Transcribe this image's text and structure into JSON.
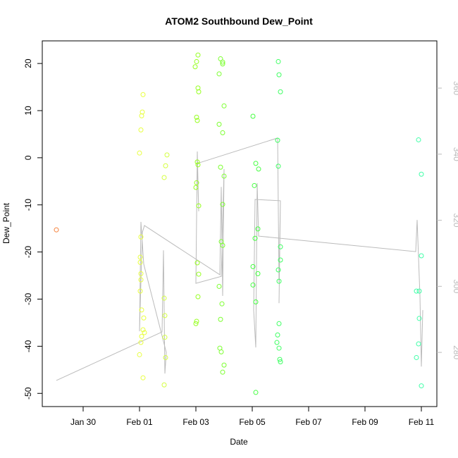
{
  "chart_data": {
    "type": "scatter",
    "title": "ATOM2 Southbound Dew_Point",
    "xlabel": "Date",
    "ylabel": "Dew_Point",
    "xlim": [
      28.55,
      42.55
    ],
    "xticks": [
      {
        "value": 30,
        "label": "Jan 30"
      },
      {
        "value": 32,
        "label": "Feb 01"
      },
      {
        "value": 34,
        "label": "Feb 03"
      },
      {
        "value": 36,
        "label": "Feb 05"
      },
      {
        "value": 38,
        "label": "Feb 07"
      },
      {
        "value": 40,
        "label": "Feb 09"
      },
      {
        "value": 42,
        "label": "Feb 11"
      }
    ],
    "ylim": [
      -52.8,
      24.8
    ],
    "yticks": [
      -50,
      -40,
      -30,
      -20,
      -10,
      0,
      10,
      20
    ],
    "y2lim": [
      263.6,
      374.3
    ],
    "y2ticks": [
      280,
      300,
      320,
      340,
      360
    ],
    "series": [
      {
        "type": "scatter",
        "color": "#f5823c",
        "x": [
          29.05
        ],
        "values": [
          -15.3
        ]
      },
      {
        "type": "scatter",
        "color": "#e8ff40",
        "x": [
          32.125,
          32.1,
          32.075,
          32.05,
          32.0,
          32.05,
          32.025,
          32.025,
          32.05,
          32.05,
          32.025,
          32.075,
          32.15,
          32.125,
          32.175,
          32.075,
          32.05,
          32.0,
          32.125
        ],
        "values": [
          13.4,
          9.7,
          8.9,
          5.9,
          1.0,
          -16.8,
          -21.1,
          -22.2,
          -24.6,
          -25.9,
          -28.3,
          -32.3,
          -34.0,
          -36.5,
          -37.1,
          -37.9,
          -39.2,
          -41.8,
          -46.7
        ]
      },
      {
        "type": "scatter",
        "color": "#d4ff40",
        "x": [
          32.975,
          32.925,
          32.875,
          32.875,
          32.9,
          32.9,
          32.925,
          32.875
        ],
        "values": [
          0.6,
          -1.7,
          -4.2,
          -29.8,
          -33.5,
          -38.1,
          -42.4,
          -48.2
        ]
      },
      {
        "type": "scatter",
        "color": "#96ff20",
        "x": [
          34.075,
          34.025,
          33.975,
          34.075,
          34.1,
          34.025,
          34.05,
          34.05,
          34.075,
          34.025,
          34.0,
          34.1,
          34.05,
          34.1,
          34.075,
          34.025,
          34.0
        ],
        "values": [
          21.8,
          20.4,
          19.3,
          14.8,
          14.0,
          8.6,
          7.9,
          -0.9,
          -1.5,
          -5.3,
          -6.3,
          -10.2,
          -22.3,
          -24.7,
          -29.5,
          -34.7,
          -35.2
        ]
      },
      {
        "type": "scatter",
        "color": "#7cff30",
        "x": [
          34.875,
          34.95,
          34.95,
          34.825,
          35.0,
          34.825,
          34.95,
          34.875,
          35.0,
          34.95,
          34.9,
          34.95,
          34.825,
          34.925,
          34.875,
          34.85,
          34.9,
          35.0,
          34.95
        ],
        "values": [
          21.0,
          20.3,
          19.9,
          17.8,
          11.0,
          7.1,
          5.3,
          -2.0,
          -3.9,
          -9.9,
          -17.8,
          -18.6,
          -27.3,
          -31.0,
          -34.3,
          -40.4,
          -41.2,
          -44.0,
          -45.5
        ]
      },
      {
        "type": "scatter",
        "color": "#44ff40",
        "x": [
          36.025,
          36.125,
          36.225,
          36.075,
          36.2,
          36.1,
          36.025,
          36.2,
          36.025,
          36.125,
          36.125
        ],
        "values": [
          8.8,
          -1.2,
          -2.4,
          -5.9,
          -15.1,
          -17.1,
          -23.1,
          -24.6,
          -27.0,
          -30.6,
          -49.8
        ]
      },
      {
        "type": "scatter",
        "color": "#40ff64",
        "x": [
          36.925,
          36.95,
          37.0,
          36.9,
          36.925,
          37.0,
          37.0,
          36.925,
          36.95,
          36.95,
          36.9,
          36.875,
          36.95,
          36.975,
          37.0
        ],
        "values": [
          20.4,
          17.6,
          14.0,
          3.7,
          -1.8,
          -18.9,
          -21.7,
          -23.8,
          -26.2,
          -35.2,
          -37.6,
          -39.2,
          -40.4,
          -42.8,
          -43.3
        ]
      },
      {
        "type": "scatter",
        "color": "#40ffa8",
        "x": [
          41.9,
          42.0,
          42.0,
          41.825,
          41.925,
          41.925,
          41.9,
          41.825,
          42.0
        ],
        "values": [
          3.8,
          -3.5,
          -20.8,
          -28.3,
          -28.3,
          -34.1,
          -39.5,
          -42.4,
          -48.4
        ]
      },
      {
        "type": "line",
        "axis": "y2",
        "color": "#bbbbbb",
        "x": [
          29.05,
          32.8,
          32.85,
          32.9,
          32.95,
          32.15,
          32.05,
          32.0,
          32.1,
          32.175,
          34.85,
          34.9,
          34.95,
          35.0,
          34.9,
          34.0,
          34.05,
          34.1,
          34.05,
          36.9,
          36.95,
          37.0,
          36.95,
          37.0,
          36.1,
          36.05,
          36.125,
          36.175,
          36.225,
          41.8,
          41.85,
          41.95,
          42.0,
          42.05
        ],
        "values": [
          271.5,
          286.2,
          310.9,
          273.6,
          280.0,
          306.7,
          319.5,
          286.4,
          316.3,
          318.4,
          303.5,
          330.1,
          297.1,
          335.5,
          303.0,
          300.9,
          340.8,
          322.7,
          337.2,
          344.9,
          301.3,
          325.9,
          294.9,
          325.9,
          326.3,
          292.8,
          281.5,
          331.2,
          315.2,
          310.5,
          320.1,
          297.1,
          275.7,
          292.8
        ]
      }
    ]
  }
}
